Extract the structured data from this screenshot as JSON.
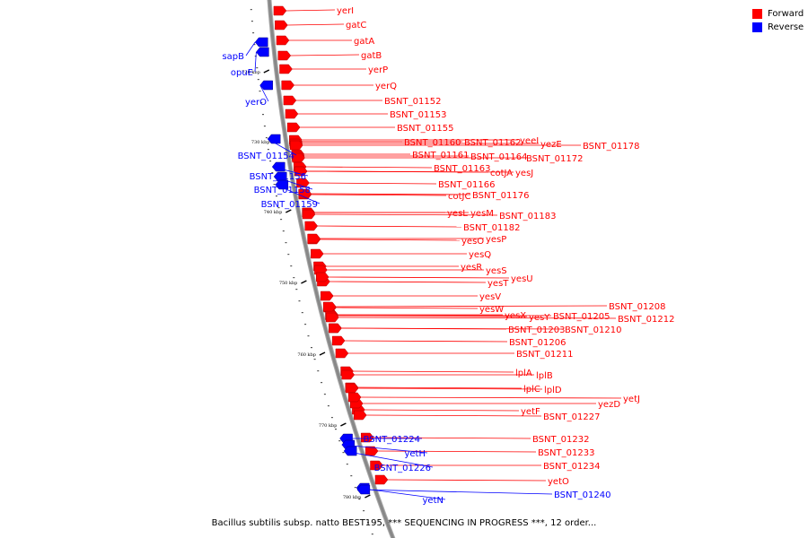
{
  "colors": {
    "forward": "#ff0000",
    "reverse": "#0000ff",
    "backbone": "#888888"
  },
  "legend": [
    {
      "label": "Forward",
      "color": "#ff0000"
    },
    {
      "label": "Reverse",
      "color": "#0000ff"
    }
  ],
  "caption": "Bacillus subtilis subsp. natto BEST195, *** SEQUENCING IN PROGRESS ***, 12 order...",
  "ticks": [
    "720 kbp",
    "730 kbp",
    "740 kbp",
    "750 kbp",
    "760 kbp",
    "770 kbp",
    "780 kbp"
  ],
  "forward_genes": [
    "yerI",
    "gatC",
    "gatA",
    "gatB",
    "yerP",
    "yerQ",
    "BSNT_01152",
    "BSNT_01153",
    "BSNT_01155",
    "BSNT_01160",
    "BSNT_01161",
    "BSNT_01162",
    "yeeI",
    "yezE",
    "BSNT_01178",
    "BSNT_01164",
    "BSNT_01172",
    "BSNT_01163",
    "cotJA",
    "yesJ",
    "BSNT_01166",
    "cotJC",
    "BSNT_01176",
    "yesL",
    "yesM",
    "BSNT_01183",
    "BSNT_01182",
    "yesO",
    "yesP",
    "yesQ",
    "yesR",
    "yesS",
    "yesT",
    "yesU",
    "yesV",
    "yesW",
    "yesX",
    "yesY",
    "BSNT_01205",
    "BSNT_01208",
    "BSNT_01212",
    "BSNT_01203",
    "BSNT_01210",
    "BSNT_01206",
    "BSNT_01211",
    "lplA",
    "lplB",
    "lplC",
    "lplD",
    "yetF",
    "BSNT_01227",
    "yezD",
    "yetJ",
    "BSNT_01232",
    "BSNT_01233",
    "BSNT_01234",
    "yetO"
  ],
  "reverse_genes": [
    "sapB",
    "opuE",
    "yerO",
    "BSNT_01154",
    "BSNT_01156",
    "BSNT_01158",
    "BSNT_01159",
    "BSNT_01224",
    "yetH",
    "BSNT_01226",
    "yetN",
    "BSNT_01240"
  ]
}
